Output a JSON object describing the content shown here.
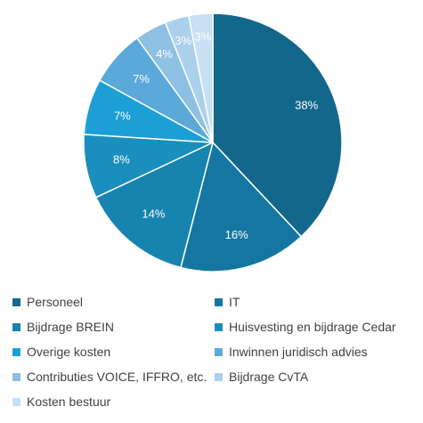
{
  "chart_data": {
    "type": "pie",
    "categories": [
      "Personeel",
      "IT",
      "Bijdrage BREIN",
      "Huisvesting en bijdrage Cedar",
      "Overige kosten",
      "Inwinnen juridisch advies",
      "Contributies VOICE, IFFRO, etc.",
      "Bijdrage CvTA",
      "Kosten bestuur"
    ],
    "values": [
      38,
      16,
      14,
      8,
      7,
      7,
      4,
      3,
      3
    ],
    "data_labels": [
      "38%",
      "16%",
      "14%",
      "8%",
      "7%",
      "7%",
      "4%",
      "3%",
      "3%"
    ],
    "colors": [
      "#13678A",
      "#1577A1",
      "#1783AF",
      "#1A8FBE",
      "#1B9FD4",
      "#5BA9D9",
      "#8DC0E2",
      "#ABD0EC",
      "#C7E0F4"
    ],
    "legend_position": "bottom",
    "title": ""
  }
}
